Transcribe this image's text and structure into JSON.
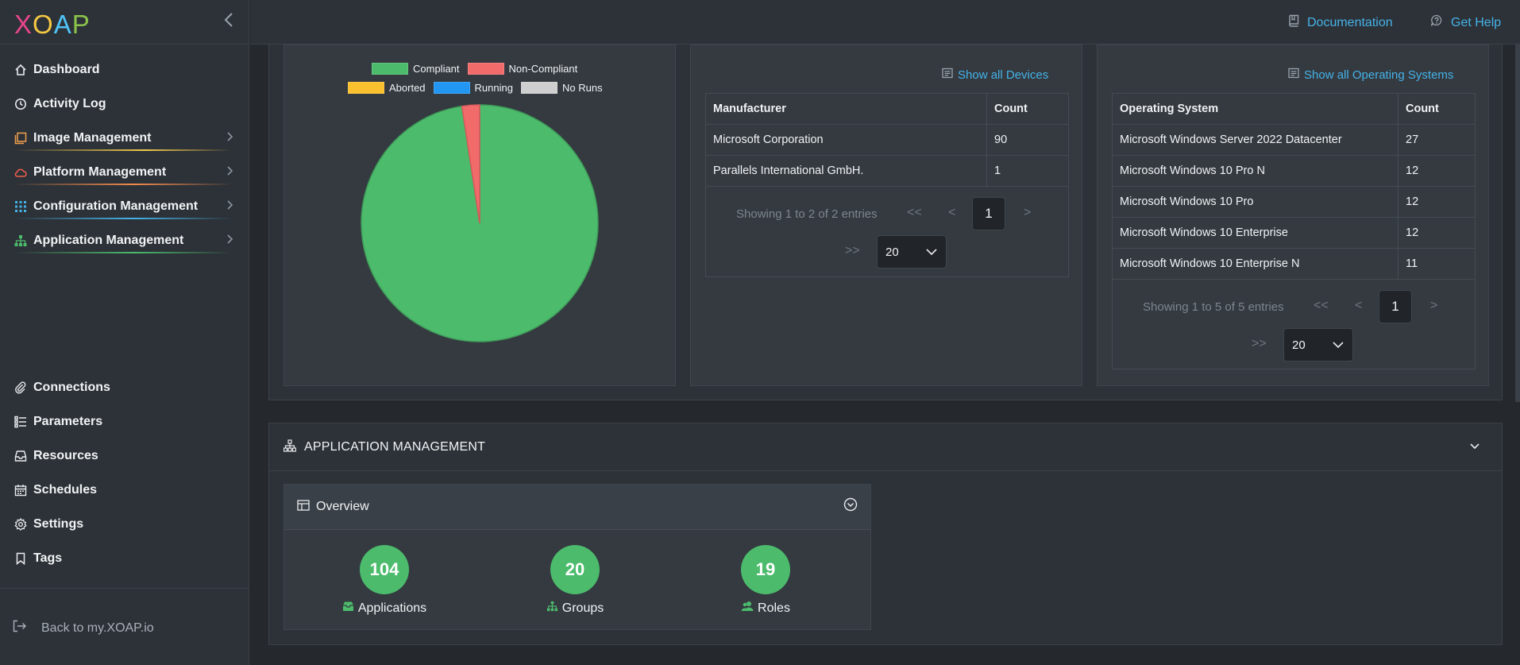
{
  "brand": {
    "logo_letters": [
      "X",
      "O",
      "A",
      "P"
    ],
    "logo_colors": [
      "#e8458b",
      "#f5c842",
      "#4fc3f7",
      "#8bc34a"
    ]
  },
  "sidebar": {
    "items": [
      {
        "label": "Dashboard",
        "icon": "home-icon"
      },
      {
        "label": "Activity Log",
        "icon": "clock-icon"
      },
      {
        "label": "Image Management",
        "icon": "images-icon",
        "accent": "#f0a04b"
      },
      {
        "label": "Platform Management",
        "icon": "cloud-icon",
        "accent": "#f25f4c"
      },
      {
        "label": "Configuration Management",
        "icon": "grid-icon",
        "accent": "#45b2e8"
      },
      {
        "label": "Application Management",
        "icon": "sitemap-icon",
        "accent": "#4cbb6c"
      },
      {
        "label": "Connections",
        "icon": "paperclip-icon"
      },
      {
        "label": "Parameters",
        "icon": "list-icon"
      },
      {
        "label": "Resources",
        "icon": "inbox-icon"
      },
      {
        "label": "Schedules",
        "icon": "calendar-icon"
      },
      {
        "label": "Settings",
        "icon": "gear-icon"
      },
      {
        "label": "Tags",
        "icon": "bookmark-icon"
      }
    ],
    "back_label": "Back to my.XOAP.io"
  },
  "topbar": {
    "documentation": "Documentation",
    "help": "Get Help"
  },
  "compliance_card": {
    "legend": [
      {
        "label": "Compliant",
        "color": "#4cbb6c"
      },
      {
        "label": "Non-Compliant",
        "color": "#f26b6b"
      },
      {
        "label": "Aborted",
        "color": "#fbc02d"
      },
      {
        "label": "Running",
        "color": "#2196f3"
      },
      {
        "label": "No Runs",
        "color": "#cfcfcf"
      }
    ]
  },
  "chart_data": {
    "type": "pie",
    "categories": [
      "Compliant",
      "Non-Compliant",
      "Aborted",
      "Running",
      "No Runs"
    ],
    "values": [
      97.6,
      2.4,
      0,
      0,
      0
    ],
    "legend_position": "top"
  },
  "devices_card": {
    "show_all": "Show all Devices",
    "columns": [
      "Manufacturer",
      "Count"
    ],
    "rows": [
      [
        "Microsoft Corporation",
        "90"
      ],
      [
        "Parallels International GmbH.",
        "1"
      ]
    ],
    "pager_text": "Showing 1 to 2 of 2 entries",
    "current_page": "1",
    "page_size": "20",
    "first": "<<",
    "prev": "<",
    "next": ">",
    "last": ">>"
  },
  "os_card": {
    "show_all": "Show all Operating Systems",
    "columns": [
      "Operating System",
      "Count"
    ],
    "rows": [
      [
        "Microsoft Windows Server 2022 Datacenter",
        "27"
      ],
      [
        "Microsoft Windows 10 Pro N",
        "12"
      ],
      [
        "Microsoft Windows 10 Pro",
        "12"
      ],
      [
        "Microsoft Windows 10 Enterprise",
        "12"
      ],
      [
        "Microsoft Windows 10 Enterprise N",
        "11"
      ]
    ],
    "pager_text": "Showing 1 to 5 of 5 entries",
    "current_page": "1",
    "page_size": "20",
    "first": "<<",
    "prev": "<",
    "next": ">",
    "last": ">>"
  },
  "app_section": {
    "title": "APPLICATION MANAGEMENT",
    "overview": {
      "title": "Overview",
      "stats": [
        {
          "value": "104",
          "label": "Applications",
          "icon": "box-icon"
        },
        {
          "value": "20",
          "label": "Groups",
          "icon": "sitemap-icon"
        },
        {
          "value": "19",
          "label": "Roles",
          "icon": "users-icon"
        }
      ]
    }
  }
}
